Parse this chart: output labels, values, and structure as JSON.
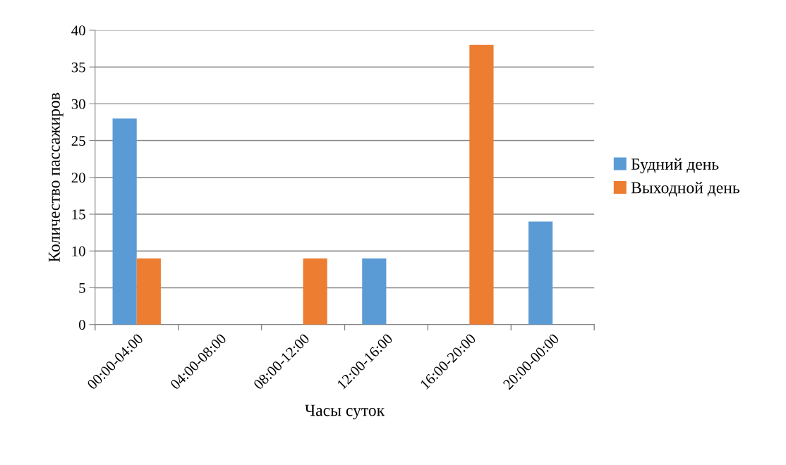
{
  "chart_data": {
    "type": "bar",
    "xlabel": "Часы суток",
    "ylabel": "Количество пассажиров",
    "categories": [
      "00:00-04:00",
      "04:00-08:00",
      "08:00-12:00",
      "12:00-16:00",
      "16:00-20:00",
      "20:00-00:00"
    ],
    "series": [
      {
        "name": "Будний день",
        "color": "#5b9bd5",
        "values": [
          28,
          0,
          0,
          9,
          0,
          14
        ]
      },
      {
        "name": "Выходной день",
        "color": "#ed7d31",
        "values": [
          9,
          0,
          9,
          0,
          38,
          0
        ]
      }
    ],
    "ylim": [
      0,
      40
    ],
    "yticks": [
      0,
      5,
      10,
      15,
      20,
      25,
      30,
      35,
      40
    ],
    "grid": "y",
    "legend": "right"
  }
}
